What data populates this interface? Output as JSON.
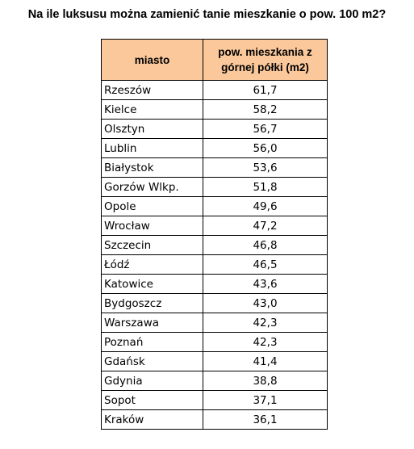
{
  "title": "Na ile luksusu można zamienić tanie mieszkanie o pow. 100 m2?",
  "colors": {
    "header_fill": "#FBC89B",
    "border": "#000000"
  },
  "table": {
    "headers": [
      "miasto",
      "pow. mieszkania z górnej półki (m2)"
    ],
    "rows": [
      [
        "Rzeszów",
        "61,7"
      ],
      [
        "Kielce",
        "58,2"
      ],
      [
        "Olsztyn",
        "56,7"
      ],
      [
        "Lublin",
        "56,0"
      ],
      [
        "Białystok",
        "53,6"
      ],
      [
        "Gorzów Wlkp.",
        "51,8"
      ],
      [
        "Opole",
        "49,6"
      ],
      [
        "Wrocław",
        "47,2"
      ],
      [
        "Szczecin",
        "46,8"
      ],
      [
        "Łódź",
        "46,5"
      ],
      [
        "Katowice",
        "43,6"
      ],
      [
        "Bydgoszcz",
        "43,0"
      ],
      [
        "Warszawa",
        "42,3"
      ],
      [
        "Poznań",
        "42,3"
      ],
      [
        "Gdańsk",
        "41,4"
      ],
      [
        "Gdynia",
        "38,8"
      ],
      [
        "Sopot",
        "37,1"
      ],
      [
        "Kraków",
        "36,1"
      ]
    ]
  }
}
